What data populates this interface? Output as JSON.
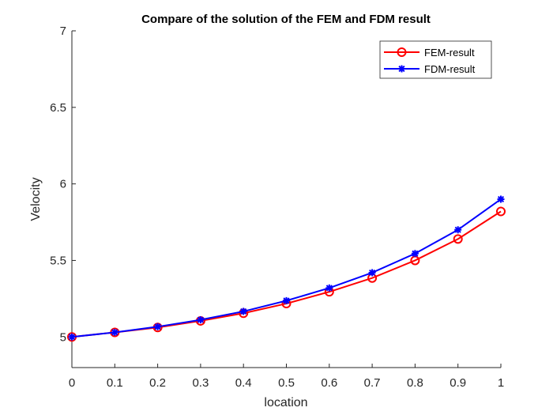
{
  "chart_data": {
    "type": "line",
    "title": "Compare of the solution of the FEM and FDM result",
    "xlabel": "location",
    "ylabel": "Velocity",
    "xlim": [
      0,
      1
    ],
    "ylim": [
      4.8,
      7
    ],
    "xticks": [
      0,
      0.1,
      0.2,
      0.3,
      0.4,
      0.5,
      0.6,
      0.7,
      0.8,
      0.9,
      1
    ],
    "xtick_labels": [
      "0",
      "0.1",
      "0.2",
      "0.3",
      "0.4",
      "0.5",
      "0.6",
      "0.7",
      "0.8",
      "0.9",
      "1"
    ],
    "yticks": [
      5,
      5.5,
      6,
      6.5,
      7
    ],
    "ytick_labels": [
      "5",
      "5.5",
      "6",
      "6.5",
      "7"
    ],
    "grid": false,
    "legend_position": "top-right",
    "x": [
      0,
      0.1,
      0.2,
      0.3,
      0.4,
      0.5,
      0.6,
      0.7,
      0.8,
      0.9,
      1
    ],
    "series": [
      {
        "name": "FEM-result",
        "color": "#ff0000",
        "marker": "circle",
        "values": [
          5.0,
          5.03,
          5.062,
          5.105,
          5.155,
          5.218,
          5.295,
          5.385,
          5.5,
          5.64,
          5.82
        ]
      },
      {
        "name": "FDM-result",
        "color": "#0000ff",
        "marker": "star",
        "values": [
          5.0,
          5.03,
          5.067,
          5.112,
          5.167,
          5.237,
          5.32,
          5.42,
          5.545,
          5.7,
          5.9
        ]
      }
    ]
  }
}
